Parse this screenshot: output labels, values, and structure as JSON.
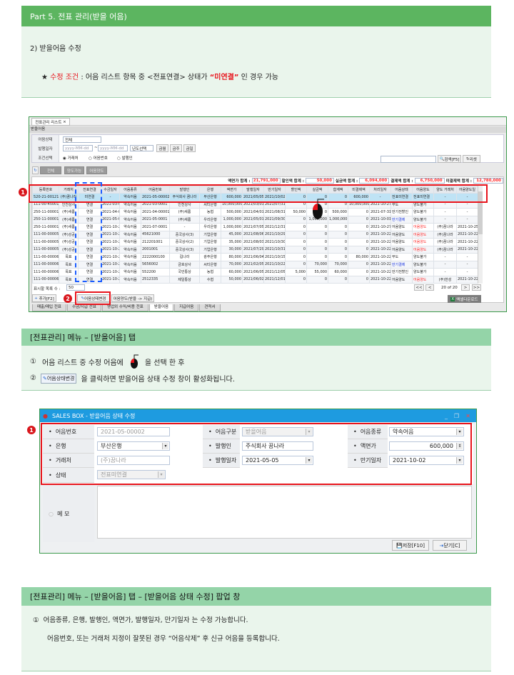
{
  "section1": {
    "title": "Part 5. 전표 관리(받을 어음)",
    "subtitle": "2) 받을어음 수정",
    "star": "★",
    "cond_label": "수정 조건",
    "cond_text": " : 어음 리스트 항목  중 <전표연결> 상태가 ",
    "cond_quote": "“미연결”",
    "cond_tail": " 인 경우 가능"
  },
  "screen1": {
    "tab": "전표관리 리스트",
    "tab_close": "×",
    "title": "받을어음",
    "filters": {
      "status_label": "어음상태",
      "status_value": "전체",
      "date_label": "발행일자",
      "date_from": "yyyy-MM-dd",
      "date_sep": "~",
      "date_to": "yyyy-MM-dd",
      "year_select": "년도선택",
      "btn_month": "금월",
      "btn_week": "금주",
      "btn_day": "금일",
      "cond_label": "조건선택",
      "radio1": "거래처",
      "radio2": "어음번호",
      "radio3": "발행인"
    },
    "search": {
      "value": "",
      "search_btn": "검색[F5]",
      "reset_btn": "리셋"
    },
    "quick": {
      "all": "전체",
      "transferable": "양도가능",
      "transferred": "어음양도"
    },
    "totals": {
      "face_label": "액면가 합계 :",
      "face": "21,791,000",
      "disc_label": "할인액 합계 :",
      "disc": "50,000",
      "real_label": "실금액 합계 :",
      "real": "6,094,000",
      "paid_label": "결제액 합계 :",
      "paid": "6,750,000",
      "unpaid_label": "미결제액 합계 :",
      "unpaid": "12,780,000"
    },
    "columns": [
      "등록번호",
      "거래처",
      "전표연결",
      "수금일자",
      "어음종류",
      "어음번호",
      "발행인",
      "은행",
      "액면가",
      "발행일자",
      "만기일자",
      "할인액",
      "실금액",
      "합계액",
      "미결제액",
      "처리일자",
      "어음상태",
      "어음양도",
      "양도 거래처",
      "어음양도일"
    ],
    "rows": [
      [
        "520-21-00121",
        "(주)꿈나라",
        "미연결",
        "-",
        "약속어음",
        "2021-05-00002",
        "주식회사 꿈나라",
        "부산은행",
        "600,000",
        "2021/05/05",
        "2021/10/02",
        "0",
        "0",
        "0",
        "600,000",
        "-",
        "전표미연결",
        "전표미연결",
        "-",
        "-"
      ],
      [
        "111-00-45001",
        "인천상사",
        "연결",
        "2021-03-02",
        "약속어음",
        "2021-03-0001",
        "인천상사",
        "씨티은행",
        "10,000,000",
        "2021/03/01",
        "2021/07/31",
        "0",
        "0",
        "0",
        "10,000,000",
        "2021-10-27",
        "부도",
        "양도불가",
        "-",
        "-"
      ],
      [
        "250-11-00001",
        "(주)새롬",
        "연결",
        "2021-04-02",
        "약속어음",
        "2021-04-00001",
        "(주)새롬",
        "농협",
        "500,000",
        "2021/04/01",
        "2021/08/31",
        "50,000",
        "0",
        "500,000",
        "0",
        "2021-07-31",
        "만기전할인",
        "양도불가",
        "-",
        "-"
      ],
      [
        "250-11-00001",
        "(주)새롬",
        "연결",
        "2021-05-03",
        "약속어음",
        "2021-05-0001",
        "(주)새롬",
        "우리은행",
        "1,000,000",
        "2021/05/01",
        "2021/09/30",
        "0",
        "1,000,000",
        "1,000,000",
        "0",
        "2021-10-01",
        "만기결제",
        "양도불가",
        "-",
        "-"
      ],
      [
        "250-11-00001",
        "(주)새롬",
        "연결",
        "2021-10-20",
        "약속어음",
        "2021-07-0001",
        "-",
        "우리은행",
        "1,000,000",
        "2021/07/05",
        "2021/12/31",
        "0",
        "0",
        "0",
        "0",
        "2021-10-27",
        "어음양도",
        "어음양도",
        "(주)꿈나라",
        "2021-10-25"
      ],
      [
        "111-00-00005",
        "(주)성공",
        "연결",
        "2021-10-22",
        "약속어음",
        "45621000",
        "중국상사(3)",
        "기업은행",
        "45,000",
        "2021/08/06",
        "2021/10/29",
        "0",
        "0",
        "0",
        "0",
        "2021-10-22",
        "어음양도",
        "어음양도",
        "(주)꿈나라",
        "2021-10-22"
      ],
      [
        "111-00-00005",
        "(주)성공",
        "연결",
        "2021-10-22",
        "약속어음",
        "212201001",
        "중국상사(2)",
        "기업은행",
        "35,000",
        "2021/08/03",
        "2021/10/30",
        "0",
        "0",
        "0",
        "0",
        "2021-10-22",
        "어음양도",
        "어음양도",
        "(주)꿈나라",
        "2021-10-22"
      ],
      [
        "111-00-00005",
        "(주)성공",
        "연결",
        "2021-10-22",
        "약속어음",
        "2001001",
        "중국상사(3)",
        "기업은행",
        "30,000",
        "2021/07/29",
        "2021/10/31",
        "0",
        "0",
        "0",
        "0",
        "2021-10-22",
        "어음양도",
        "어음양도",
        "(주)꿈나라",
        "2021-10-22"
      ],
      [
        "111-00-00006",
        "목표",
        "연결",
        "2021-10-22",
        "약속어음",
        "2222000100",
        "컵나라",
        "광주은행",
        "80,000",
        "2021/06/04",
        "2021/10/15",
        "0",
        "0",
        "0",
        "80,000",
        "2021-10-22",
        "부도",
        "양도불가",
        "-",
        "-"
      ],
      [
        "111-00-00006",
        "목표",
        "연결",
        "2021-10-22",
        "약속어음",
        "5656002",
        "금호상사",
        "씨티은행",
        "70,000",
        "2021/02/05",
        "2021/10/22",
        "0",
        "70,000",
        "70,000",
        "0",
        "2021-10-22",
        "만기결제",
        "양도불가",
        "-",
        "-"
      ],
      [
        "111-00-00006",
        "목표",
        "연결",
        "2021-10-22",
        "약속어음",
        "552200",
        "국민통상",
        "농협",
        "60,000",
        "2021/06/05",
        "2021/12/05",
        "5,000",
        "55,000",
        "60,000",
        "0",
        "2021-10-22",
        "만기전할인",
        "양도불가",
        "-",
        "-"
      ],
      [
        "111-00-00006",
        "목표",
        "연결",
        "2021-10-22",
        "약속어음",
        "2512335",
        "제일통상",
        "수협",
        "50,000",
        "2021/06/02",
        "2021/12/01",
        "0",
        "0",
        "0",
        "0",
        "2021-10-22",
        "어음양도",
        "어음양도",
        "(주)한성",
        "2021-10-22"
      ]
    ],
    "page_size_label": "표시할 목록 수 :",
    "page_size": "50",
    "pager": {
      "first": "<<",
      "prev": "<",
      "info": "20 of 20",
      "next": ">",
      "last": ">>"
    },
    "add_btn": "추가[F2]",
    "status_change_btn": "어음상태변경",
    "transfer_btn": "어음양도(받을 -> 지급)",
    "excel_btn": "엑셀다운로드",
    "bottom_tabs": [
      "매출/매입 전표",
      "수금/지급 전표",
      "영업외 수익/비용 전표",
      "받을어음",
      "지급어음",
      "견적서"
    ],
    "active_tab": 3,
    "marker1": "1",
    "marker2": "2"
  },
  "section2": {
    "title": "[전표관리] 메뉴 – [받을어음] 탭",
    "step1_num": "①",
    "step1_a": "어음 리스트 중 수정 어음에",
    "step1_b": "을  선택 한 후",
    "step2_num": "②",
    "step2_btn": "어음상태변경",
    "step2_text": "을 클릭하면 받을어음 상태 수정 창이 활성화됩니다."
  },
  "dialog": {
    "title": "SALES BOX - 받을어음 상태 수정",
    "marker": "1",
    "fields": {
      "no_label": "어음번호",
      "no": "2021-05-00002",
      "kind_label": "어음구분",
      "kind": "받을어음",
      "type_label": "어음종류",
      "type": "약속어음",
      "bank_label": "은행",
      "bank": "부산은행",
      "issuer_label": "발행인",
      "issuer": "주식회사 꿈나라",
      "face_label": "액면가",
      "face": "600,000",
      "client_label": "거래처",
      "client": "(주)꿈나라",
      "issue_label": "발행일자",
      "issue": "2021-05-05",
      "due_label": "만기일자",
      "due": "2021-10-02",
      "status_label": "상태",
      "status": "전표미연결",
      "memo_label": "메 모",
      "memo": ""
    },
    "save_btn": "저장[F10]",
    "close_btn": "닫기[C]"
  },
  "section3": {
    "title": "[전표관리] 메뉴 – [받을어음] 탭 – [받을어음 상태 수정] 팝업 창",
    "num": "①",
    "line1": "어음종류, 은행, 발행인, 액면가, 발행일자, 만기일자 는 수정 가능합니다.",
    "line2": "어음번호, 또는 거래처 지정이 잘못된 경우 “어음삭제” 후 신규 어음을 등록합니다."
  },
  "colors": {
    "section_header": "#5cb560",
    "section_header_light": "#94d4a8",
    "panel": "#eaf5ec",
    "highlight_red": "#e8141c",
    "dialog_title": "#1e9be0"
  }
}
